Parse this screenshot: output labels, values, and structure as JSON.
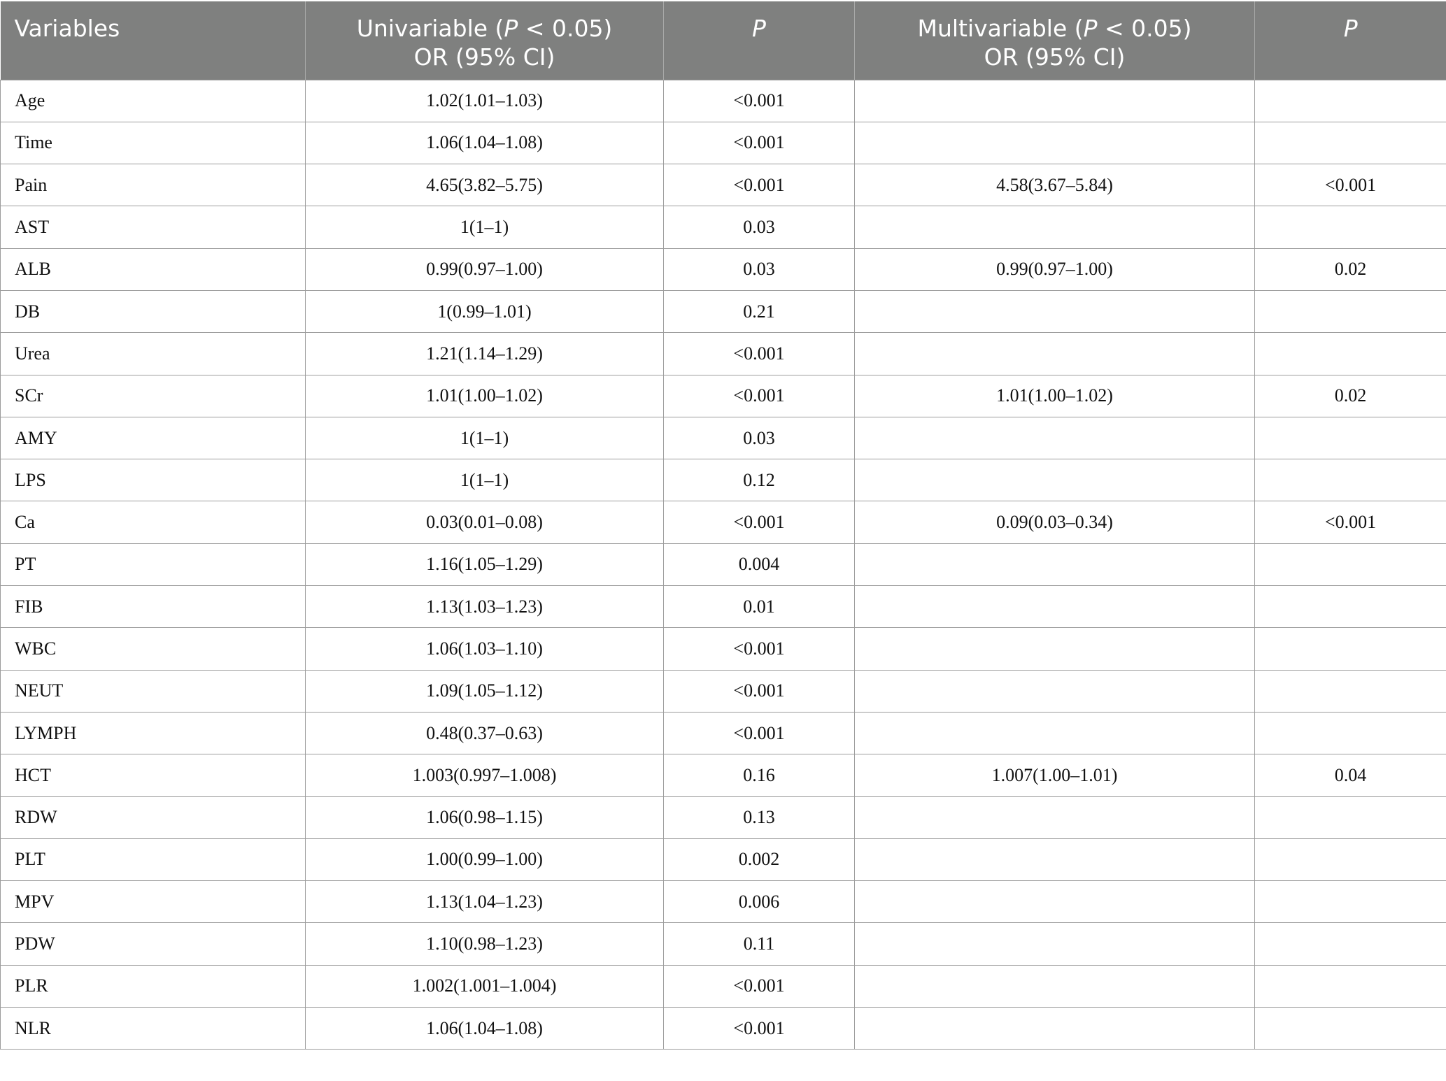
{
  "table": {
    "header": {
      "variables": "Variables",
      "univariable_line1": "Univariable (",
      "univariable_p": "P",
      "univariable_line1_end": " < 0.05)",
      "univariable_line2": "OR (95% CI)",
      "p1": "P",
      "multivariable_line1": "Multivariable (",
      "multivariable_p": "P",
      "multivariable_line1_end": " < 0.05)",
      "multivariable_line2": "OR (95% CI)",
      "p2": "P"
    },
    "rows": [
      {
        "variable": "Age",
        "uni_or": "1.02(1.01–1.03)",
        "uni_p": "<0.001",
        "multi_or": "",
        "multi_p": ""
      },
      {
        "variable": "Time",
        "uni_or": "1.06(1.04–1.08)",
        "uni_p": "<0.001",
        "multi_or": "",
        "multi_p": ""
      },
      {
        "variable": "Pain",
        "uni_or": "4.65(3.82–5.75)",
        "uni_p": "<0.001",
        "multi_or": "4.58(3.67–5.84)",
        "multi_p": "<0.001"
      },
      {
        "variable": "AST",
        "uni_or": "1(1–1)",
        "uni_p": "0.03",
        "multi_or": "",
        "multi_p": ""
      },
      {
        "variable": "ALB",
        "uni_or": "0.99(0.97–1.00)",
        "uni_p": "0.03",
        "multi_or": "0.99(0.97–1.00)",
        "multi_p": "0.02"
      },
      {
        "variable": "DB",
        "uni_or": "1(0.99–1.01)",
        "uni_p": "0.21",
        "multi_or": "",
        "multi_p": ""
      },
      {
        "variable": "Urea",
        "uni_or": "1.21(1.14–1.29)",
        "uni_p": "<0.001",
        "multi_or": "",
        "multi_p": ""
      },
      {
        "variable": "SCr",
        "uni_or": "1.01(1.00–1.02)",
        "uni_p": "<0.001",
        "multi_or": "1.01(1.00–1.02)",
        "multi_p": "0.02"
      },
      {
        "variable": "AMY",
        "uni_or": "1(1–1)",
        "uni_p": "0.03",
        "multi_or": "",
        "multi_p": ""
      },
      {
        "variable": "LPS",
        "uni_or": "1(1–1)",
        "uni_p": "0.12",
        "multi_or": "",
        "multi_p": ""
      },
      {
        "variable": "Ca",
        "uni_or": "0.03(0.01–0.08)",
        "uni_p": "<0.001",
        "multi_or": "0.09(0.03–0.34)",
        "multi_p": "<0.001"
      },
      {
        "variable": "PT",
        "uni_or": "1.16(1.05–1.29)",
        "uni_p": "0.004",
        "multi_or": "",
        "multi_p": ""
      },
      {
        "variable": "FIB",
        "uni_or": "1.13(1.03–1.23)",
        "uni_p": "0.01",
        "multi_or": "",
        "multi_p": ""
      },
      {
        "variable": "WBC",
        "uni_or": "1.06(1.03–1.10)",
        "uni_p": "<0.001",
        "multi_or": "",
        "multi_p": ""
      },
      {
        "variable": "NEUT",
        "uni_or": "1.09(1.05–1.12)",
        "uni_p": "<0.001",
        "multi_or": "",
        "multi_p": ""
      },
      {
        "variable": "LYMPH",
        "uni_or": "0.48(0.37–0.63)",
        "uni_p": "<0.001",
        "multi_or": "",
        "multi_p": ""
      },
      {
        "variable": "HCT",
        "uni_or": "1.003(0.997–1.008)",
        "uni_p": "0.16",
        "multi_or": "1.007(1.00–1.01)",
        "multi_p": "0.04"
      },
      {
        "variable": "RDW",
        "uni_or": "1.06(0.98–1.15)",
        "uni_p": "0.13",
        "multi_or": "",
        "multi_p": ""
      },
      {
        "variable": "PLT",
        "uni_or": "1.00(0.99–1.00)",
        "uni_p": "0.002",
        "multi_or": "",
        "multi_p": ""
      },
      {
        "variable": "MPV",
        "uni_or": "1.13(1.04–1.23)",
        "uni_p": "0.006",
        "multi_or": "",
        "multi_p": ""
      },
      {
        "variable": "PDW",
        "uni_or": "1.10(0.98–1.23)",
        "uni_p": "0.11",
        "multi_or": "",
        "multi_p": ""
      },
      {
        "variable": "PLR",
        "uni_or": "1.002(1.001–1.004)",
        "uni_p": "<0.001",
        "multi_or": "",
        "multi_p": ""
      },
      {
        "variable": "NLR",
        "uni_or": "1.06(1.04–1.08)",
        "uni_p": "<0.001",
        "multi_or": "",
        "multi_p": ""
      }
    ]
  }
}
